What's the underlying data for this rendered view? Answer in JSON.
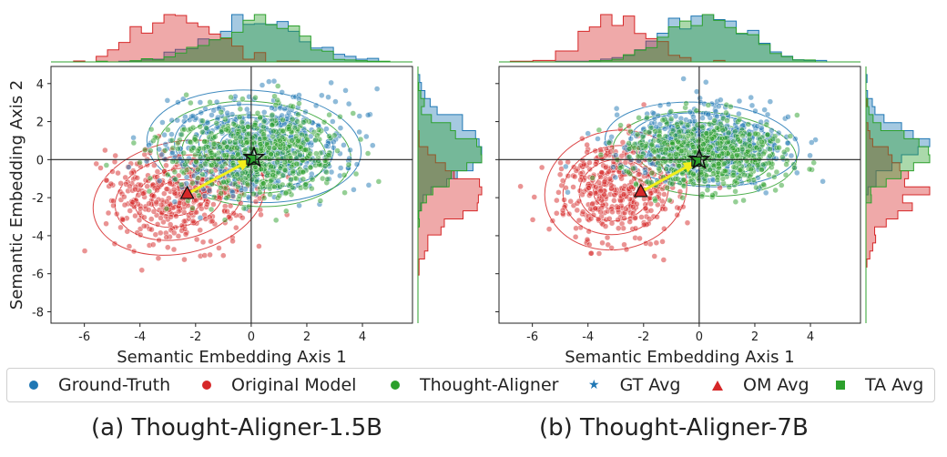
{
  "chart_data": [
    {
      "type": "scatter",
      "caption": "(a) Thought-Aligner-1.5B",
      "xlabel": "Semantic Embedding Axis 1",
      "ylabel": "Semantic Embedding Axis 2",
      "xlim": [
        -7.2,
        5.8
      ],
      "ylim": [
        -8.6,
        4.9
      ],
      "xticks": [
        -6,
        -4,
        -2,
        0,
        2,
        4
      ],
      "yticks": [
        4,
        2,
        0,
        -2,
        -4,
        -6,
        -8
      ],
      "series": [
        {
          "name": "Ground-Truth",
          "color": "#1f77b4",
          "center": [
            0.1,
            0.7
          ],
          "spread": [
            2.1,
            1.6
          ]
        },
        {
          "name": "Original Model",
          "color": "#d62728",
          "center": [
            -2.6,
            -2.0
          ],
          "spread": [
            1.7,
            1.6
          ]
        },
        {
          "name": "Thought-Aligner",
          "color": "#2ca02c",
          "center": [
            0.1,
            0.3
          ],
          "spread": [
            1.9,
            1.5
          ]
        }
      ],
      "averages": {
        "GT Avg": [
          0.1,
          0.1
        ],
        "OM Avg": [
          -2.3,
          -1.8
        ],
        "TA Avg": [
          0.0,
          0.0
        ]
      }
    },
    {
      "type": "scatter",
      "caption": "(b) Thought-Aligner-7B",
      "xlabel": "Semantic Embedding Axis 1",
      "ylabel": "",
      "xlim": [
        -7.2,
        5.8
      ],
      "ylim": [
        -8.6,
        4.9
      ],
      "xticks": [
        -6,
        -4,
        -2,
        0,
        2,
        4
      ],
      "yticks": [
        4,
        2,
        0,
        -2,
        -4,
        -6,
        -8
      ],
      "series": [
        {
          "name": "Ground-Truth",
          "color": "#1f77b4",
          "center": [
            0.1,
            0.8
          ],
          "spread": [
            1.9,
            1.2
          ]
        },
        {
          "name": "Original Model",
          "color": "#d62728",
          "center": [
            -3.0,
            -1.6
          ],
          "spread": [
            1.4,
            1.7
          ]
        },
        {
          "name": "Thought-Aligner",
          "color": "#2ca02c",
          "center": [
            0.2,
            0.3
          ],
          "spread": [
            1.8,
            1.2
          ]
        }
      ],
      "averages": {
        "GT Avg": [
          0.0,
          0.0
        ],
        "OM Avg": [
          -2.1,
          -1.7
        ],
        "TA Avg": [
          -0.1,
          -0.1
        ]
      }
    }
  ],
  "legend": [
    {
      "label": "Ground-Truth",
      "marker": "circle",
      "color": "#1f77b4"
    },
    {
      "label": "Original Model",
      "marker": "circle",
      "color": "#d62728"
    },
    {
      "label": "Thought-Aligner",
      "marker": "circle",
      "color": "#2ca02c"
    },
    {
      "label": "GT Avg",
      "marker": "star",
      "color": "#1f77b4"
    },
    {
      "label": "OM Avg",
      "marker": "triangle",
      "color": "#d62728"
    },
    {
      "label": "TA Avg",
      "marker": "square",
      "color": "#2ca02c"
    }
  ],
  "captions": {
    "left": "(a) Thought-Aligner-1.5B",
    "right": "(b) Thought-Aligner-7B"
  },
  "axis_labels": {
    "y": "Semantic Embedding Axis 2",
    "x_left": "Semantic Embedding Axis 1",
    "x_right": "Semantic Embedding Axis 1"
  }
}
